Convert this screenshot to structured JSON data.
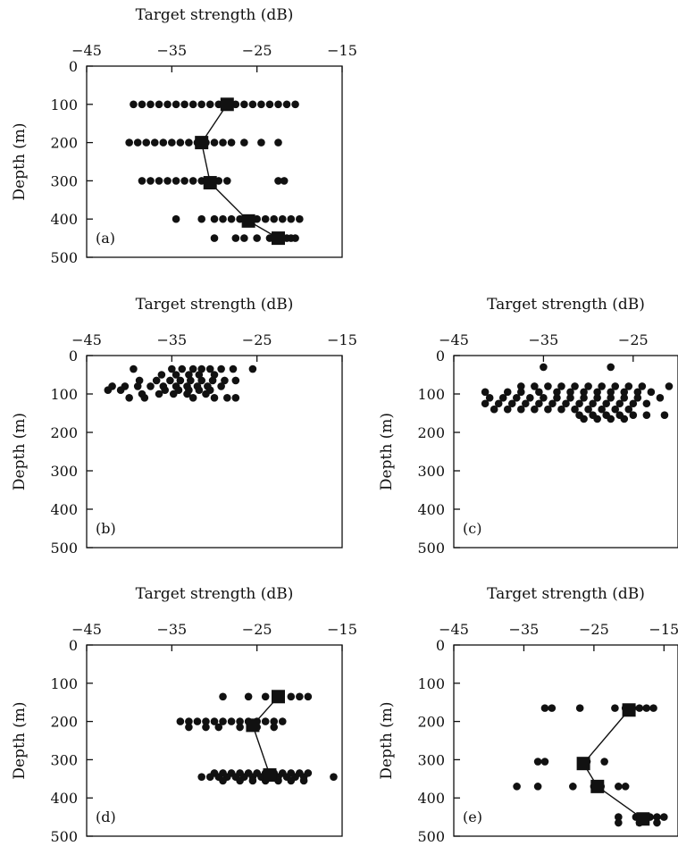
{
  "chart_data": [
    {
      "panel": "(a)",
      "type": "scatter",
      "xlabel": "Target strength (dB)",
      "ylabel": "Depth (m)",
      "xlim": [
        -45,
        -15
      ],
      "ylim": [
        0,
        500
      ],
      "y_inverted": true,
      "xticks": [
        "-45",
        "-35",
        "-25",
        "-15"
      ],
      "yticks": [
        "0",
        "100",
        "200",
        "300",
        "400",
        "500"
      ],
      "points": [
        {
          "depth": 100,
          "ts": [
            -39.5,
            -38.5,
            -37.5,
            -36.5,
            -35.5,
            -34.5,
            -33.5,
            -32.5,
            -31.5,
            -30.5,
            -29.5,
            -28.5,
            -27.5,
            -26.5,
            -25.5,
            -24.5,
            -23.5,
            -22.5,
            -21.5,
            -20.5
          ]
        },
        {
          "depth": 200,
          "ts": [
            -40,
            -39,
            -38,
            -37,
            -36,
            -35,
            -34,
            -33,
            -32,
            -31,
            -30,
            -29,
            -28,
            -26.5,
            -24.5,
            -22.5
          ]
        },
        {
          "depth": 300,
          "ts": [
            -38.5,
            -37.5,
            -36.5,
            -35.5,
            -34.5,
            -33.5,
            -32.5,
            -31.5,
            -30.5,
            -29.5,
            -28.5,
            -22.5,
            -21.8
          ]
        },
        {
          "depth": 400,
          "ts": [
            -34.5,
            -31.5,
            -30,
            -29,
            -28,
            -27,
            -26,
            -25,
            -24,
            -23,
            -22,
            -21,
            -20
          ]
        },
        {
          "depth": 450,
          "ts": [
            -30,
            -27.5,
            -26.5,
            -25,
            -23.5,
            -22,
            -21.5,
            -21,
            -20.5
          ]
        }
      ],
      "means": [
        {
          "depth": 100,
          "ts": -28.5
        },
        {
          "depth": 200,
          "ts": -31.5
        },
        {
          "depth": 305,
          "ts": -30.5
        },
        {
          "depth": 405,
          "ts": -26
        },
        {
          "depth": 450,
          "ts": -22.5
        }
      ]
    },
    {
      "panel": "(b)",
      "type": "scatter",
      "xlabel": "Target strength (dB)",
      "ylabel": "Depth (m)",
      "xlim": [
        -45,
        -15
      ],
      "ylim": [
        0,
        500
      ],
      "y_inverted": true,
      "xticks": [
        "-45",
        "-35",
        "-25",
        "-15"
      ],
      "yticks": [
        "0",
        "100",
        "200",
        "300",
        "400",
        "500"
      ],
      "points": [
        {
          "depth": 35,
          "ts": [
            -39.5,
            -35,
            -33.8,
            -32.5,
            -31.5,
            -30.5,
            -29.2,
            -27.8,
            -25.5
          ]
        },
        {
          "depth": 50,
          "ts": [
            -36.2,
            -34.5,
            -33,
            -31.8,
            -30
          ]
        },
        {
          "depth": 65,
          "ts": [
            -38.8,
            -36.8,
            -35.2,
            -34,
            -32.8,
            -31.5,
            -30.2,
            -28.8,
            -27.5
          ]
        },
        {
          "depth": 80,
          "ts": [
            -42,
            -40.5,
            -39,
            -37.5,
            -36,
            -34.5,
            -33.2,
            -32,
            -30.8,
            -29.2
          ]
        },
        {
          "depth": 90,
          "ts": [
            -42.5,
            -41,
            -35.8,
            -34.2,
            -33,
            -31.8,
            -30.5
          ]
        },
        {
          "depth": 100,
          "ts": [
            -38.5,
            -36.5,
            -34.8,
            -33.2,
            -31
          ]
        },
        {
          "depth": 110,
          "ts": [
            -40,
            -38.2,
            -32.5,
            -30,
            -28.5,
            -27.5
          ]
        }
      ],
      "means": []
    },
    {
      "panel": "(c)",
      "type": "scatter",
      "xlabel": "Target strength (dB)",
      "ylabel": "Depth (m)",
      "xlim": [
        -45,
        -20
      ],
      "ylim": [
        0,
        500
      ],
      "y_inverted": true,
      "xticks": [
        "-45",
        "-35",
        "-25"
      ],
      "yticks": [
        "0",
        "100",
        "200",
        "300",
        "400",
        "500"
      ],
      "points": [
        {
          "depth": 30,
          "ts": [
            -35,
            -27.5
          ]
        },
        {
          "depth": 80,
          "ts": [
            -37.5,
            -36,
            -34.5,
            -33,
            -31.5,
            -30,
            -28.5,
            -27,
            -25.5,
            -24,
            -21
          ]
        },
        {
          "depth": 95,
          "ts": [
            -41.5,
            -39,
            -37.5,
            -35.5,
            -33.5,
            -32,
            -30.5,
            -29,
            -27.5,
            -26,
            -24.5,
            -23
          ]
        },
        {
          "depth": 110,
          "ts": [
            -41,
            -39.5,
            -38,
            -36.5,
            -35,
            -33.5,
            -32,
            -30.5,
            -29,
            -27.5,
            -26,
            -24.5,
            -22
          ]
        },
        {
          "depth": 125,
          "ts": [
            -41.5,
            -40,
            -38.5,
            -37,
            -35.5,
            -34,
            -32.5,
            -31,
            -29.5,
            -28,
            -26.5,
            -25,
            -23.5
          ]
        },
        {
          "depth": 140,
          "ts": [
            -40.5,
            -39,
            -37.5,
            -36,
            -34.5,
            -33,
            -31.5,
            -30,
            -28.5,
            -27,
            -25.5
          ]
        },
        {
          "depth": 155,
          "ts": [
            -31,
            -29.5,
            -28,
            -26.5,
            -25,
            -23.5,
            -21.5
          ]
        },
        {
          "depth": 165,
          "ts": [
            -30.5,
            -29,
            -27.5,
            -26
          ]
        }
      ],
      "means": []
    },
    {
      "panel": "(d)",
      "type": "scatter",
      "xlabel": "Target strength (dB)",
      "ylabel": "Depth (m)",
      "xlim": [
        -45,
        -15
      ],
      "ylim": [
        0,
        500
      ],
      "y_inverted": true,
      "xticks": [
        "-45",
        "-35",
        "-25",
        "-15"
      ],
      "yticks": [
        "0",
        "100",
        "200",
        "300",
        "400",
        "500"
      ],
      "points": [
        {
          "depth": 135,
          "ts": [
            -29,
            -26,
            -24,
            -22.5,
            -21,
            -20,
            -19
          ]
        },
        {
          "depth": 200,
          "ts": [
            -34,
            -33,
            -32,
            -31,
            -30,
            -29,
            -28,
            -27,
            -26,
            -25,
            -24,
            -23,
            -22
          ]
        },
        {
          "depth": 215,
          "ts": [
            -33,
            -31,
            -29.5,
            -27,
            -25,
            -23
          ]
        },
        {
          "depth": 335,
          "ts": [
            -30,
            -29,
            -28,
            -27,
            -26,
            -25,
            -24,
            -23,
            -22,
            -21,
            -20,
            -19
          ]
        },
        {
          "depth": 345,
          "ts": [
            -31.5,
            -30.5,
            -29.5,
            -28.5,
            -27.5,
            -26.5,
            -25.5,
            -24.5,
            -23.5,
            -22.5,
            -21.5,
            -20.5,
            -19.5,
            -16
          ]
        },
        {
          "depth": 355,
          "ts": [
            -29,
            -27,
            -25.5,
            -24,
            -22.5,
            -21,
            -19.5
          ]
        }
      ],
      "means": [
        {
          "depth": 135,
          "ts": -22.5
        },
        {
          "depth": 210,
          "ts": -25.5
        },
        {
          "depth": 340,
          "ts": -23.5
        }
      ]
    },
    {
      "panel": "(e)",
      "type": "scatter",
      "xlabel": "Target strength (dB)",
      "ylabel": "Depth (m)",
      "xlim": [
        -45,
        -13
      ],
      "ylim": [
        0,
        500
      ],
      "y_inverted": true,
      "xticks": [
        "-45",
        "-35",
        "-25",
        "-15"
      ],
      "yticks": [
        "0",
        "100",
        "200",
        "300",
        "400",
        "500"
      ],
      "points": [
        {
          "depth": 165,
          "ts": [
            -32,
            -31,
            -27,
            -22,
            -20.5,
            -19.5,
            -18.5,
            -17.5,
            -16.5
          ]
        },
        {
          "depth": 305,
          "ts": [
            -33,
            -32,
            -26,
            -23.5
          ]
        },
        {
          "depth": 370,
          "ts": [
            -36,
            -33,
            -28,
            -25,
            -24,
            -21.5,
            -20.5
          ]
        },
        {
          "depth": 450,
          "ts": [
            -21.5,
            -19,
            -18,
            -17,
            -16,
            -15
          ]
        },
        {
          "depth": 465,
          "ts": [
            -21.5,
            -18.5,
            -16
          ]
        }
      ],
      "means": [
        {
          "depth": 170,
          "ts": -20
        },
        {
          "depth": 310,
          "ts": -26.5
        },
        {
          "depth": 370,
          "ts": -24.5
        },
        {
          "depth": 455,
          "ts": -18
        }
      ]
    }
  ]
}
